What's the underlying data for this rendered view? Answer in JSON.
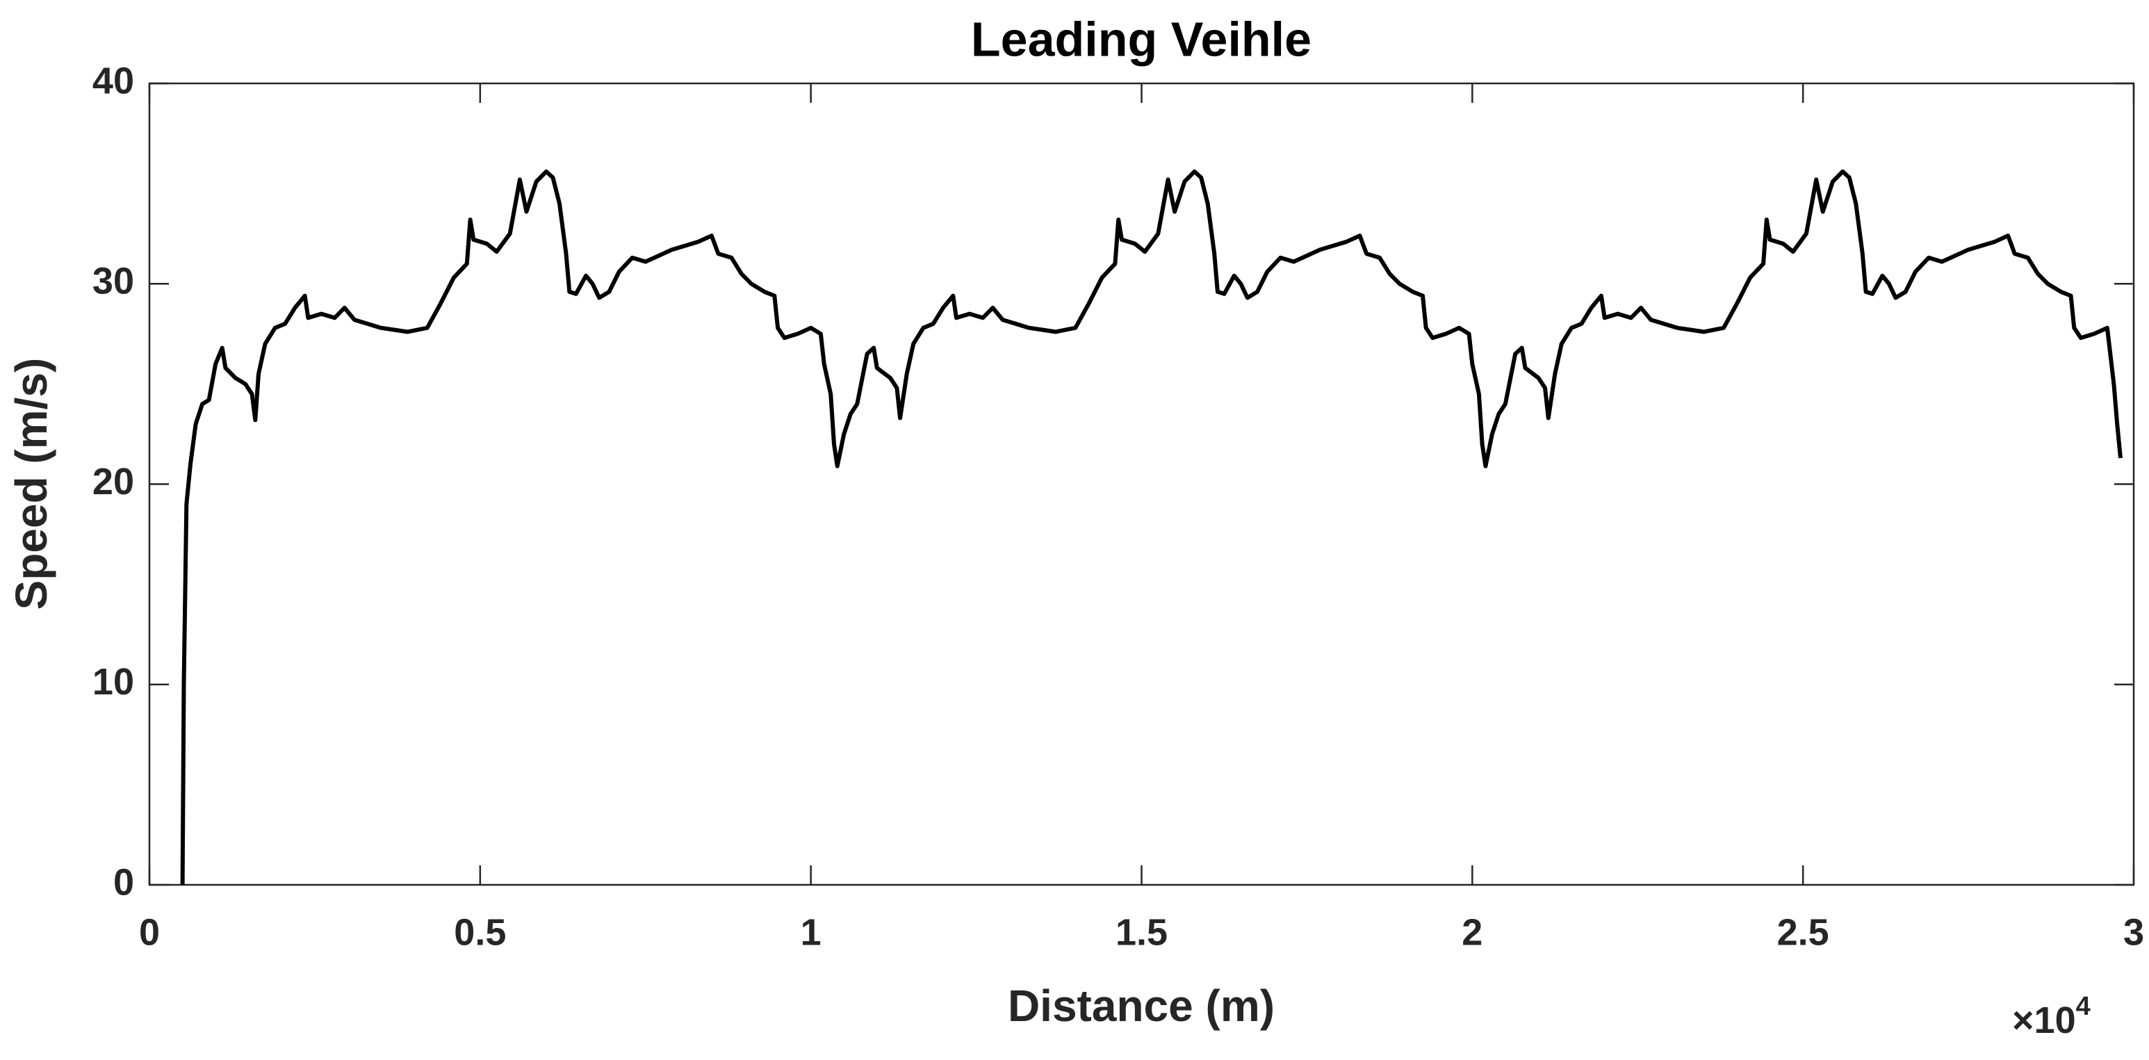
{
  "chart_data": {
    "type": "line",
    "title": "Leading Veihle",
    "x_label": "Distance (m)",
    "y_label": "Speed (m/s)",
    "x_multiplier_base": "×10",
    "x_multiplier_power": "4",
    "xlim": [
      0,
      30000
    ],
    "ylim": [
      0,
      40
    ],
    "xticks": [
      0,
      {
        "value": 5000,
        "label": "0.5"
      },
      {
        "value": 10000,
        "label": "1"
      },
      {
        "value": 15000,
        "label": "1.5"
      },
      {
        "value": 20000,
        "label": "2"
      },
      {
        "value": 25000,
        "label": "2.5"
      },
      {
        "value": 30000,
        "label": "3"
      }
    ],
    "yticks": [
      0,
      10,
      20,
      30,
      40
    ],
    "grid": false,
    "series": [
      {
        "color": "#000000",
        "x": [
          500,
          520,
          560,
          620,
          700,
          800,
          900,
          1000,
          1100,
          1150,
          1300,
          1450,
          1550,
          1600,
          1650,
          1750,
          1900,
          2050,
          2200,
          2350,
          2400,
          2600,
          2800,
          2950,
          3100,
          3300,
          3500,
          3700,
          3900,
          4200,
          4400,
          4600,
          4800,
          4850,
          4900,
          5100,
          5250,
          5450,
          5600,
          5700,
          5850,
          6000,
          6100,
          6200,
          6300,
          6350,
          6450,
          6600,
          6700,
          6800,
          6950,
          7100,
          7300,
          7500,
          7700,
          7900,
          8100,
          8300,
          8500,
          8600,
          8800,
          8950,
          9100,
          9300,
          9450,
          9500,
          9600,
          9800,
          10000,
          10150,
          10200,
          10300,
          10350,
          10400,
          10500,
          10600,
          10700,
          10850,
          10950,
          11000,
          11200,
          11300,
          11350,
          11450,
          11550,
          11700,
          11850,
          12000,
          12150,
          12200,
          12400,
          12600,
          12750,
          12900,
          13100,
          13300,
          13500,
          13700,
          14000,
          14200,
          14400,
          14600,
          14650,
          14700,
          14900,
          15050,
          15250,
          15400,
          15500,
          15650,
          15800,
          15900,
          16000,
          16100,
          16150,
          16250,
          16400,
          16500,
          16600,
          16750,
          16900,
          17100,
          17300,
          17500,
          17700,
          17900,
          18100,
          18300,
          18400,
          18600,
          18750,
          18900,
          19100,
          19250,
          19300,
          19400,
          19600,
          19800,
          19950,
          20000,
          20100,
          20150,
          20200,
          20300,
          20400,
          20500,
          20650,
          20750,
          20800,
          21000,
          21100,
          21150,
          21250,
          21350,
          21500,
          21650,
          21800,
          21950,
          22000,
          22200,
          22400,
          22550,
          22700,
          22900,
          23100,
          23300,
          23500,
          23800,
          24000,
          24200,
          24400,
          24450,
          24500,
          24700,
          24850,
          25050,
          25200,
          25300,
          25450,
          25600,
          25700,
          25800,
          25900,
          25950,
          26050,
          26200,
          26300,
          26400,
          26550,
          26700,
          26900,
          27100,
          27300,
          27500,
          27700,
          27900,
          28100,
          28200,
          28400,
          28550,
          28700,
          28900,
          29050,
          29100,
          29200,
          29400,
          29600,
          29700,
          29750,
          29800
        ],
        "values": [
          0,
          10,
          19,
          21,
          23,
          24,
          24.2,
          26,
          26.8,
          25.8,
          25.3,
          25,
          24.5,
          23.2,
          25.5,
          27,
          27.8,
          28,
          28.8,
          29.4,
          28.3,
          28.5,
          28.3,
          28.8,
          28.2,
          28,
          27.8,
          27.7,
          27.6,
          27.8,
          29,
          30.3,
          31,
          33.2,
          32.2,
          32,
          31.6,
          32.5,
          35.2,
          33.6,
          35.1,
          35.6,
          35.3,
          34,
          31.5,
          29.6,
          29.5,
          30.4,
          30,
          29.3,
          29.6,
          30.6,
          31.3,
          31.1,
          31.4,
          31.7,
          31.9,
          32.1,
          32.4,
          31.5,
          31.3,
          30.5,
          30,
          29.6,
          29.4,
          27.8,
          27.3,
          27.5,
          27.8,
          27.5,
          26,
          24.5,
          22,
          20.9,
          22.5,
          23.5,
          24,
          26.5,
          26.8,
          25.8,
          25.3,
          24.8,
          23.3,
          25.5,
          27,
          27.8,
          28,
          28.8,
          29.4,
          28.3,
          28.5,
          28.3,
          28.8,
          28.2,
          28,
          27.8,
          27.7,
          27.6,
          27.8,
          29,
          30.3,
          31,
          33.2,
          32.2,
          32,
          31.6,
          32.5,
          35.2,
          33.6,
          35.1,
          35.6,
          35.3,
          34,
          31.5,
          29.6,
          29.5,
          30.4,
          30,
          29.3,
          29.6,
          30.6,
          31.3,
          31.1,
          31.4,
          31.7,
          31.9,
          32.1,
          32.4,
          31.5,
          31.3,
          30.5,
          30,
          29.6,
          29.4,
          27.8,
          27.3,
          27.5,
          27.8,
          27.5,
          26,
          24.5,
          22,
          20.9,
          22.5,
          23.5,
          24,
          26.5,
          26.8,
          25.8,
          25.3,
          24.8,
          23.3,
          25.5,
          27,
          27.8,
          28,
          28.8,
          29.4,
          28.3,
          28.5,
          28.3,
          28.8,
          28.2,
          28,
          27.8,
          27.7,
          27.6,
          27.8,
          29,
          30.3,
          31,
          33.2,
          32.2,
          32,
          31.6,
          32.5,
          35.2,
          33.6,
          35.1,
          35.6,
          35.3,
          34,
          31.5,
          29.6,
          29.5,
          30.4,
          30,
          29.3,
          29.6,
          30.6,
          31.3,
          31.1,
          31.4,
          31.7,
          31.9,
          32.1,
          32.4,
          31.5,
          31.3,
          30.5,
          30,
          29.6,
          29.4,
          27.8,
          27.3,
          27.5,
          27.8,
          25,
          23,
          21.3
        ]
      }
    ]
  }
}
